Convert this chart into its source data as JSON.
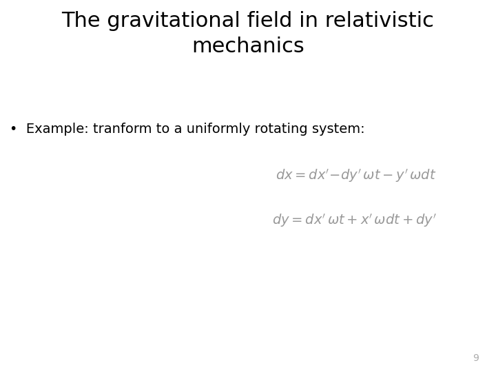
{
  "title_line1": "The gravitational field in relativistic",
  "title_line2": "mechanics",
  "bullet_text": "•  Example: tranform to a uniformly rotating system:",
  "eq1": "$dx = dx'\\!-\\!dy'\\,\\omega t - y'\\,\\omega dt$",
  "eq2": "$dy = dx'\\,\\omega t + x'\\,\\omega dt + dy'$",
  "page_number": "9",
  "bg_color": "#ffffff",
  "title_fontsize": 22,
  "title_fontweight": "normal",
  "bullet_fontsize": 14,
  "eq_fontsize": 14,
  "eq_color": "#999999",
  "page_fontsize": 10,
  "page_color": "#aaaaaa"
}
